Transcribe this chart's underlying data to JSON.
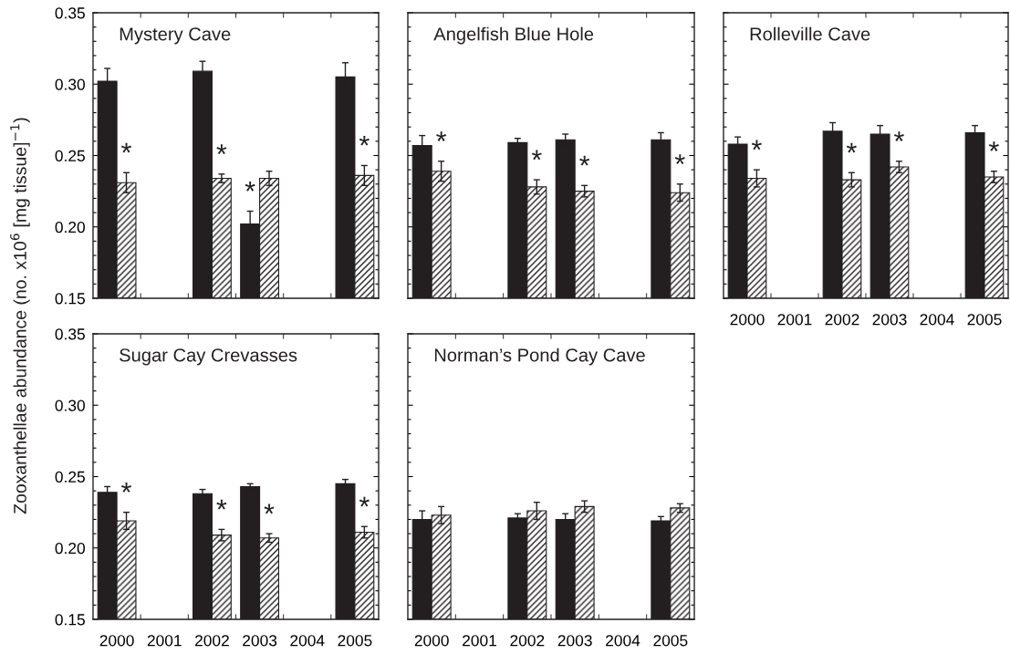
{
  "chart_data": [
    {
      "type": "bar",
      "title": "Mystery Cave",
      "ylabel": "Zooxanthellae abundance (no. x10$^{6}$ [mg tissue]$^{−1}$)",
      "categories": [
        "2000",
        "2001",
        "2002",
        "2003",
        "2004",
        "2005"
      ],
      "ylim": [
        0.15,
        0.35
      ],
      "yticks": [
        0.15,
        {
          "value": 0.16,
          "label": null
        },
        {
          "value": 0.17,
          "label": null
        },
        {
          "value": 0.18,
          "label": null
        },
        {
          "value": 0.19,
          "label": null
        },
        {
          "value": 0.2,
          "label": "0.20"
        },
        {
          "value": 0.21,
          "label": null
        },
        {
          "value": 0.22,
          "label": null
        },
        {
          "value": 0.23,
          "label": null
        },
        {
          "value": 0.24,
          "label": null
        },
        0.25,
        {
          "value": 0.26,
          "label": null
        },
        {
          "value": 0.27,
          "label": null
        },
        {
          "value": 0.28,
          "label": null
        },
        {
          "value": 0.29,
          "label": null
        },
        {
          "value": 0.3,
          "label": "0.30"
        },
        {
          "value": 0.31,
          "label": null
        },
        {
          "value": 0.32,
          "label": null
        },
        {
          "value": 0.33,
          "label": null
        },
        {
          "value": 0.34,
          "label": null
        },
        0.35
      ],
      "tick_labels": "y",
      "series": [
        {
          "color": "#231f20",
          "values": [
            0.302,
            null,
            0.309,
            0.202,
            null,
            0.305
          ],
          "errors": [
            0.009,
            null,
            0.007,
            0.009,
            null,
            0.01
          ]
        },
        {
          "color": "#231f20",
          "values": [
            0.231,
            null,
            0.234,
            0.234,
            null,
            0.236
          ],
          "errors": [
            0.007,
            null,
            0.003,
            0.005,
            null,
            0.007
          ]
        }
      ],
      "annotations": [
        {
          "text": "*",
          "x": "2000",
          "y": 0.231
        },
        {
          "text": "*",
          "x": "2002",
          "y": 0.234
        },
        {
          "text": "*",
          "x": "2003",
          "y": 0.202
        },
        {
          "text": "*",
          "x": "2005",
          "y": 0.236
        }
      ]
    },
    {
      "type": "bar",
      "title": "Angelfish Blue Hole",
      "categories": [
        "2000",
        "2001",
        "2002",
        "2003",
        "2004",
        "2005"
      ],
      "ylim": [
        0.15,
        0.35
      ],
      "yticks": [
        {
          "value": 0.15,
          "label": null
        },
        {
          "value": 0.16,
          "label": null
        },
        {
          "value": 0.17,
          "label": null
        },
        {
          "value": 0.18,
          "label": null
        },
        {
          "value": 0.19,
          "label": null
        },
        {
          "value": 0.2,
          "label": null
        },
        {
          "value": 0.21,
          "label": null
        },
        {
          "value": 0.22,
          "label": null
        },
        {
          "value": 0.23,
          "label": null
        },
        {
          "value": 0.24,
          "label": null
        },
        {
          "value": 0.25,
          "label": null
        },
        {
          "value": 0.26,
          "label": null
        },
        {
          "value": 0.27,
          "label": null
        },
        {
          "value": 0.28,
          "label": null
        },
        {
          "value": 0.29,
          "label": null
        },
        {
          "value": 0.3,
          "label": null
        },
        {
          "value": 0.31,
          "label": null
        },
        {
          "value": 0.32,
          "label": null
        },
        {
          "value": 0.33,
          "label": null
        },
        {
          "value": 0.34,
          "label": null
        },
        {
          "value": 0.35,
          "label": null
        }
      ],
      "tick_labels": false,
      "series": [
        {
          "color": "#231f20",
          "values": [
            0.257,
            null,
            0.259,
            0.261,
            null,
            0.261
          ],
          "errors": [
            0.007,
            null,
            0.003,
            0.004,
            null,
            0.005
          ]
        },
        {
          "color": "#231f20",
          "values": [
            0.239,
            null,
            0.228,
            0.225,
            null,
            0.224
          ],
          "errors": [
            0.007,
            null,
            0.005,
            0.004,
            null,
            0.006
          ]
        }
      ],
      "annotations": [
        {
          "text": "*",
          "x": "2000",
          "y": 0.239
        },
        {
          "text": "*",
          "x": "2002",
          "y": 0.228
        },
        {
          "text": "*",
          "x": "2003",
          "y": 0.225
        },
        {
          "text": "*",
          "x": "2005",
          "y": 0.224
        }
      ]
    },
    {
      "type": "bar",
      "title": "Rolleville Cave",
      "categories": [
        "2000",
        "2001",
        "2002",
        "2003",
        "2004",
        "2005"
      ],
      "ylim": [
        0.15,
        0.35
      ],
      "yticks": [
        {
          "value": 0.15,
          "label": null
        },
        {
          "value": 0.16,
          "label": null
        },
        {
          "value": 0.17,
          "label": null
        },
        {
          "value": 0.18,
          "label": null
        },
        {
          "value": 0.19,
          "label": null
        },
        {
          "value": 0.2,
          "label": null
        },
        {
          "value": 0.21,
          "label": null
        },
        {
          "value": 0.22,
          "label": null
        },
        {
          "value": 0.23,
          "label": null
        },
        {
          "value": 0.24,
          "label": null
        },
        {
          "value": 0.25,
          "label": null
        },
        {
          "value": 0.26,
          "label": null
        },
        {
          "value": 0.27,
          "label": null
        },
        {
          "value": 0.28,
          "label": null
        },
        {
          "value": 0.29,
          "label": null
        },
        {
          "value": 0.3,
          "label": null
        },
        {
          "value": 0.31,
          "label": null
        },
        {
          "value": 0.32,
          "label": null
        },
        {
          "value": 0.33,
          "label": null
        },
        {
          "value": 0.34,
          "label": null
        },
        {
          "value": 0.35,
          "label": null
        }
      ],
      "tick_labels": "x",
      "series": [
        {
          "color": "#231f20",
          "values": [
            0.258,
            null,
            0.267,
            0.265,
            null,
            0.266
          ],
          "errors": [
            0.005,
            null,
            0.006,
            0.006,
            null,
            0.005
          ]
        },
        {
          "color": "#231f20",
          "values": [
            0.234,
            null,
            0.233,
            0.242,
            null,
            0.235
          ],
          "errors": [
            0.006,
            null,
            0.005,
            0.004,
            null,
            0.004
          ]
        }
      ],
      "annotations": [
        {
          "text": "*",
          "x": "2000",
          "y": 0.234
        },
        {
          "text": "*",
          "x": "2002",
          "y": 0.233
        },
        {
          "text": "*",
          "x": "2003",
          "y": 0.242
        },
        {
          "text": "*",
          "x": "2005",
          "y": 0.235
        }
      ]
    },
    {
      "type": "bar",
      "title": "Sugar Cay Crevasses",
      "categories": [
        "2000",
        "2001",
        "2002",
        "2003",
        "2004",
        "2005"
      ],
      "ylim": [
        0.15,
        0.35
      ],
      "yticks": [
        0.15,
        {
          "value": 0.16,
          "label": null
        },
        {
          "value": 0.17,
          "label": null
        },
        {
          "value": 0.18,
          "label": null
        },
        {
          "value": 0.19,
          "label": null
        },
        {
          "value": 0.2,
          "label": "0.20"
        },
        {
          "value": 0.21,
          "label": null
        },
        {
          "value": 0.22,
          "label": null
        },
        {
          "value": 0.23,
          "label": null
        },
        {
          "value": 0.24,
          "label": null
        },
        0.25,
        {
          "value": 0.26,
          "label": null
        },
        {
          "value": 0.27,
          "label": null
        },
        {
          "value": 0.28,
          "label": null
        },
        {
          "value": 0.29,
          "label": null
        },
        {
          "value": 0.3,
          "label": "0.30"
        },
        {
          "value": 0.31,
          "label": null
        },
        {
          "value": 0.32,
          "label": null
        },
        {
          "value": 0.33,
          "label": null
        },
        {
          "value": 0.34,
          "label": null
        },
        0.35
      ],
      "series": [
        {
          "color": "#231f20",
          "values": [
            0.239,
            null,
            0.238,
            0.243,
            null,
            0.245
          ],
          "errors": [
            0.004,
            null,
            0.003,
            0.002,
            null,
            0.003
          ]
        },
        {
          "color": "#231f20",
          "values": [
            0.219,
            null,
            0.209,
            0.207,
            null,
            0.211
          ],
          "errors": [
            0.006,
            null,
            0.004,
            0.003,
            null,
            0.004
          ]
        }
      ],
      "annotations": [
        {
          "text": "*",
          "x": "2000",
          "y": 0.219
        },
        {
          "text": "*",
          "x": "2002",
          "y": 0.209
        },
        {
          "text": "*",
          "x": "2003",
          "y": 0.207
        },
        {
          "text": "*",
          "x": "2005",
          "y": 0.211
        }
      ]
    },
    {
      "type": "bar",
      "title": "Norman’s Pond Cay Cave",
      "categories": [
        "2000",
        "2001",
        "2002",
        "2003",
        "2004",
        "2005"
      ],
      "ylim": [
        0.15,
        0.35
      ],
      "yticks": [
        {
          "value": 0.15,
          "label": null
        },
        {
          "value": 0.16,
          "label": null
        },
        {
          "value": 0.17,
          "label": null
        },
        {
          "value": 0.18,
          "label": null
        },
        {
          "value": 0.19,
          "label": null
        },
        {
          "value": 0.2,
          "label": null
        },
        {
          "value": 0.21,
          "label": null
        },
        {
          "value": 0.22,
          "label": null
        },
        {
          "value": 0.23,
          "label": null
        },
        {
          "value": 0.24,
          "label": null
        },
        {
          "value": 0.25,
          "label": null
        },
        {
          "value": 0.26,
          "label": null
        },
        {
          "value": 0.27,
          "label": null
        },
        {
          "value": 0.28,
          "label": null
        },
        {
          "value": 0.29,
          "label": null
        },
        {
          "value": 0.3,
          "label": null
        },
        {
          "value": 0.31,
          "label": null
        },
        {
          "value": 0.32,
          "label": null
        },
        {
          "value": 0.33,
          "label": null
        },
        {
          "value": 0.34,
          "label": null
        },
        {
          "value": 0.35,
          "label": null
        }
      ],
      "tick_labels": "x",
      "series": [
        {
          "color": "#231f20",
          "values": [
            0.22,
            null,
            0.221,
            0.22,
            null,
            0.219
          ],
          "errors": [
            0.006,
            null,
            0.003,
            0.004,
            null,
            0.003
          ]
        },
        {
          "color": "#231f20",
          "values": [
            0.223,
            null,
            0.226,
            0.229,
            null,
            0.228
          ],
          "errors": [
            0.006,
            null,
            0.006,
            0.004,
            null,
            0.003
          ]
        }
      ]
    }
  ]
}
